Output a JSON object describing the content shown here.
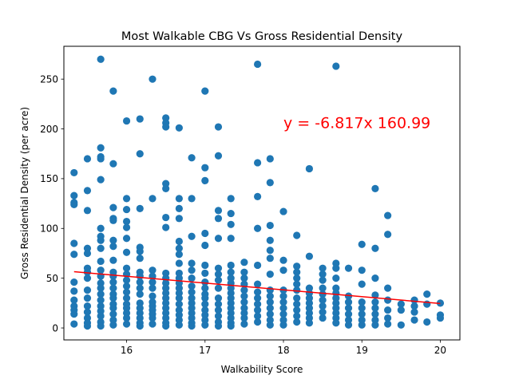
{
  "chart_data": {
    "type": "scatter",
    "title": "Most Walkable CBG Vs Gross Residential Density",
    "xlabel": "Walkability Score",
    "ylabel": "Gross Residential Density (per acre)",
    "xlim": [
      15.2,
      20.25
    ],
    "ylim": [
      -12,
      283
    ],
    "xticks": [
      16,
      17,
      18,
      19,
      20
    ],
    "yticks": [
      0,
      50,
      100,
      150,
      200,
      250
    ],
    "grid": false,
    "annotation": {
      "text": "y = -6.817x 160.99",
      "x": 18.0,
      "y": 201,
      "color": "#ff0000"
    },
    "regression": {
      "x": [
        15.33,
        20.0
      ],
      "y": [
        56.5,
        24.6
      ],
      "color": "#ff0000"
    },
    "point_color": "#1f77b4",
    "points": [
      [
        15.33,
        156
      ],
      [
        15.33,
        133
      ],
      [
        15.33,
        126
      ],
      [
        15.33,
        124
      ],
      [
        15.33,
        85
      ],
      [
        15.33,
        74
      ],
      [
        15.33,
        46
      ],
      [
        15.33,
        37
      ],
      [
        15.33,
        28
      ],
      [
        15.33,
        22
      ],
      [
        15.33,
        18
      ],
      [
        15.33,
        14
      ],
      [
        15.33,
        4
      ],
      [
        15.5,
        170
      ],
      [
        15.5,
        138
      ],
      [
        15.5,
        118
      ],
      [
        15.5,
        80
      ],
      [
        15.5,
        75
      ],
      [
        15.5,
        60
      ],
      [
        15.5,
        56
      ],
      [
        15.5,
        50
      ],
      [
        15.5,
        38
      ],
      [
        15.5,
        30
      ],
      [
        15.5,
        22
      ],
      [
        15.5,
        16
      ],
      [
        15.5,
        10
      ],
      [
        15.5,
        5
      ],
      [
        15.5,
        2
      ],
      [
        15.67,
        270
      ],
      [
        15.67,
        181
      ],
      [
        15.67,
        172
      ],
      [
        15.67,
        170
      ],
      [
        15.67,
        149
      ],
      [
        15.67,
        100
      ],
      [
        15.67,
        92
      ],
      [
        15.67,
        88
      ],
      [
        15.67,
        80
      ],
      [
        15.67,
        67
      ],
      [
        15.67,
        58
      ],
      [
        15.67,
        52
      ],
      [
        15.67,
        45
      ],
      [
        15.67,
        40
      ],
      [
        15.67,
        34
      ],
      [
        15.67,
        28
      ],
      [
        15.67,
        22
      ],
      [
        15.67,
        17
      ],
      [
        15.67,
        12
      ],
      [
        15.67,
        6
      ],
      [
        15.67,
        2
      ],
      [
        15.83,
        238
      ],
      [
        15.83,
        165
      ],
      [
        15.83,
        121
      ],
      [
        15.83,
        110
      ],
      [
        15.83,
        108
      ],
      [
        15.83,
        88
      ],
      [
        15.83,
        82
      ],
      [
        15.83,
        68
      ],
      [
        15.83,
        56
      ],
      [
        15.83,
        52
      ],
      [
        15.83,
        46
      ],
      [
        15.83,
        40
      ],
      [
        15.83,
        34
      ],
      [
        15.83,
        30
      ],
      [
        15.83,
        24
      ],
      [
        15.83,
        20
      ],
      [
        15.83,
        14
      ],
      [
        15.83,
        8
      ],
      [
        15.83,
        3
      ],
      [
        16.0,
        208
      ],
      [
        16.0,
        130
      ],
      [
        16.0,
        119
      ],
      [
        16.0,
        107
      ],
      [
        16.0,
        101
      ],
      [
        16.0,
        90
      ],
      [
        16.0,
        76
      ],
      [
        16.0,
        60
      ],
      [
        16.0,
        54
      ],
      [
        16.0,
        48
      ],
      [
        16.0,
        42
      ],
      [
        16.0,
        36
      ],
      [
        16.0,
        30
      ],
      [
        16.0,
        24
      ],
      [
        16.0,
        20
      ],
      [
        16.0,
        15
      ],
      [
        16.0,
        10
      ],
      [
        16.0,
        4
      ],
      [
        16.17,
        210
      ],
      [
        16.17,
        175
      ],
      [
        16.17,
        120
      ],
      [
        16.17,
        81
      ],
      [
        16.17,
        77
      ],
      [
        16.17,
        70
      ],
      [
        16.17,
        56
      ],
      [
        16.17,
        52
      ],
      [
        16.17,
        46
      ],
      [
        16.17,
        40
      ],
      [
        16.17,
        34
      ],
      [
        16.17,
        25
      ],
      [
        16.17,
        20
      ],
      [
        16.17,
        15
      ],
      [
        16.17,
        10
      ],
      [
        16.17,
        5
      ],
      [
        16.17,
        2
      ],
      [
        16.33,
        250
      ],
      [
        16.33,
        130
      ],
      [
        16.33,
        58
      ],
      [
        16.33,
        52
      ],
      [
        16.33,
        46
      ],
      [
        16.33,
        40
      ],
      [
        16.33,
        32
      ],
      [
        16.33,
        26
      ],
      [
        16.33,
        22
      ],
      [
        16.33,
        18
      ],
      [
        16.33,
        14
      ],
      [
        16.33,
        10
      ],
      [
        16.33,
        4
      ],
      [
        16.5,
        211
      ],
      [
        16.5,
        206
      ],
      [
        16.5,
        202
      ],
      [
        16.5,
        145
      ],
      [
        16.5,
        140
      ],
      [
        16.5,
        111
      ],
      [
        16.5,
        101
      ],
      [
        16.5,
        55
      ],
      [
        16.5,
        50
      ],
      [
        16.5,
        45
      ],
      [
        16.5,
        40
      ],
      [
        16.5,
        35
      ],
      [
        16.5,
        30
      ],
      [
        16.5,
        25
      ],
      [
        16.5,
        20
      ],
      [
        16.5,
        15
      ],
      [
        16.5,
        10
      ],
      [
        16.5,
        5
      ],
      [
        16.5,
        2
      ],
      [
        16.67,
        201
      ],
      [
        16.67,
        130
      ],
      [
        16.67,
        120
      ],
      [
        16.67,
        110
      ],
      [
        16.67,
        87
      ],
      [
        16.67,
        80
      ],
      [
        16.67,
        74
      ],
      [
        16.67,
        65
      ],
      [
        16.67,
        55
      ],
      [
        16.67,
        50
      ],
      [
        16.67,
        45
      ],
      [
        16.67,
        40
      ],
      [
        16.67,
        35
      ],
      [
        16.67,
        30
      ],
      [
        16.67,
        24
      ],
      [
        16.67,
        18
      ],
      [
        16.67,
        13
      ],
      [
        16.67,
        8
      ],
      [
        16.67,
        3
      ],
      [
        16.83,
        171
      ],
      [
        16.83,
        130
      ],
      [
        16.83,
        92
      ],
      [
        16.83,
        65
      ],
      [
        16.83,
        58
      ],
      [
        16.83,
        50
      ],
      [
        16.83,
        42
      ],
      [
        16.83,
        36
      ],
      [
        16.83,
        30
      ],
      [
        16.83,
        25
      ],
      [
        16.83,
        20
      ],
      [
        16.83,
        15
      ],
      [
        16.83,
        10
      ],
      [
        16.83,
        5
      ],
      [
        16.83,
        2
      ],
      [
        17.0,
        238
      ],
      [
        17.0,
        161
      ],
      [
        17.0,
        148
      ],
      [
        17.0,
        95
      ],
      [
        17.0,
        83
      ],
      [
        17.0,
        63
      ],
      [
        17.0,
        55
      ],
      [
        17.0,
        46
      ],
      [
        17.0,
        40
      ],
      [
        17.0,
        34
      ],
      [
        17.0,
        30
      ],
      [
        17.0,
        24
      ],
      [
        17.0,
        18
      ],
      [
        17.0,
        13
      ],
      [
        17.0,
        8
      ],
      [
        17.0,
        3
      ],
      [
        17.17,
        202
      ],
      [
        17.17,
        173
      ],
      [
        17.17,
        118
      ],
      [
        17.17,
        110
      ],
      [
        17.17,
        90
      ],
      [
        17.17,
        60
      ],
      [
        17.17,
        54
      ],
      [
        17.17,
        48
      ],
      [
        17.17,
        40
      ],
      [
        17.17,
        30
      ],
      [
        17.17,
        24
      ],
      [
        17.17,
        18
      ],
      [
        17.17,
        12
      ],
      [
        17.17,
        6
      ],
      [
        17.17,
        2
      ],
      [
        17.33,
        130
      ],
      [
        17.33,
        115
      ],
      [
        17.33,
        104
      ],
      [
        17.33,
        90
      ],
      [
        17.33,
        63
      ],
      [
        17.33,
        56
      ],
      [
        17.33,
        50
      ],
      [
        17.33,
        45
      ],
      [
        17.33,
        40
      ],
      [
        17.33,
        35
      ],
      [
        17.33,
        30
      ],
      [
        17.33,
        25
      ],
      [
        17.33,
        20
      ],
      [
        17.33,
        15
      ],
      [
        17.33,
        10
      ],
      [
        17.33,
        5
      ],
      [
        17.33,
        2
      ],
      [
        17.5,
        66
      ],
      [
        17.5,
        56
      ],
      [
        17.5,
        50
      ],
      [
        17.5,
        44
      ],
      [
        17.5,
        38
      ],
      [
        17.5,
        32
      ],
      [
        17.5,
        26
      ],
      [
        17.5,
        20
      ],
      [
        17.5,
        15
      ],
      [
        17.5,
        10
      ],
      [
        17.5,
        4
      ],
      [
        17.67,
        265
      ],
      [
        17.67,
        166
      ],
      [
        17.67,
        132
      ],
      [
        17.67,
        100
      ],
      [
        17.67,
        63
      ],
      [
        17.67,
        44
      ],
      [
        17.67,
        36
      ],
      [
        17.67,
        30
      ],
      [
        17.67,
        24
      ],
      [
        17.67,
        18
      ],
      [
        17.67,
        12
      ],
      [
        17.67,
        6
      ],
      [
        17.83,
        170
      ],
      [
        17.83,
        146
      ],
      [
        17.83,
        103
      ],
      [
        17.83,
        88
      ],
      [
        17.83,
        78
      ],
      [
        17.83,
        70
      ],
      [
        17.83,
        54
      ],
      [
        17.83,
        38
      ],
      [
        17.83,
        32
      ],
      [
        17.83,
        26
      ],
      [
        17.83,
        20
      ],
      [
        17.83,
        14
      ],
      [
        17.83,
        8
      ],
      [
        17.83,
        3
      ],
      [
        18.0,
        117
      ],
      [
        18.0,
        68
      ],
      [
        18.0,
        58
      ],
      [
        18.0,
        38
      ],
      [
        18.0,
        32
      ],
      [
        18.0,
        26
      ],
      [
        18.0,
        20
      ],
      [
        18.0,
        14
      ],
      [
        18.0,
        8
      ],
      [
        18.0,
        3
      ],
      [
        18.17,
        93
      ],
      [
        18.17,
        62
      ],
      [
        18.17,
        56
      ],
      [
        18.17,
        50
      ],
      [
        18.17,
        44
      ],
      [
        18.17,
        38
      ],
      [
        18.17,
        30
      ],
      [
        18.17,
        24
      ],
      [
        18.17,
        18
      ],
      [
        18.17,
        12
      ],
      [
        18.17,
        6
      ],
      [
        18.33,
        160
      ],
      [
        18.33,
        72
      ],
      [
        18.33,
        40
      ],
      [
        18.33,
        35
      ],
      [
        18.33,
        30
      ],
      [
        18.33,
        25
      ],
      [
        18.33,
        20
      ],
      [
        18.33,
        15
      ],
      [
        18.33,
        10
      ],
      [
        18.33,
        5
      ],
      [
        18.5,
        60
      ],
      [
        18.5,
        54
      ],
      [
        18.5,
        48
      ],
      [
        18.5,
        40
      ],
      [
        18.5,
        34
      ],
      [
        18.5,
        28
      ],
      [
        18.5,
        22
      ],
      [
        18.5,
        16
      ],
      [
        18.5,
        10
      ],
      [
        18.67,
        263
      ],
      [
        18.67,
        65
      ],
      [
        18.67,
        60
      ],
      [
        18.67,
        50
      ],
      [
        18.67,
        40
      ],
      [
        18.67,
        35
      ],
      [
        18.67,
        30
      ],
      [
        18.67,
        25
      ],
      [
        18.67,
        20
      ],
      [
        18.67,
        15
      ],
      [
        18.67,
        10
      ],
      [
        18.67,
        5
      ],
      [
        18.83,
        60
      ],
      [
        18.83,
        32
      ],
      [
        18.83,
        26
      ],
      [
        18.83,
        20
      ],
      [
        18.83,
        14
      ],
      [
        18.83,
        8
      ],
      [
        18.83,
        3
      ],
      [
        19.0,
        84
      ],
      [
        19.0,
        58
      ],
      [
        19.0,
        44
      ],
      [
        19.0,
        26
      ],
      [
        19.0,
        20
      ],
      [
        19.0,
        14
      ],
      [
        19.0,
        8
      ],
      [
        19.0,
        3
      ],
      [
        19.17,
        140
      ],
      [
        19.17,
        80
      ],
      [
        19.17,
        50
      ],
      [
        19.17,
        33
      ],
      [
        19.17,
        26
      ],
      [
        19.17,
        20
      ],
      [
        19.17,
        14
      ],
      [
        19.17,
        8
      ],
      [
        19.17,
        3
      ],
      [
        19.33,
        113
      ],
      [
        19.33,
        94
      ],
      [
        19.33,
        40
      ],
      [
        19.33,
        28
      ],
      [
        19.33,
        18
      ],
      [
        19.33,
        10
      ],
      [
        19.33,
        4
      ],
      [
        19.5,
        24
      ],
      [
        19.5,
        18
      ],
      [
        19.5,
        3
      ],
      [
        19.67,
        28
      ],
      [
        19.67,
        22
      ],
      [
        19.67,
        16
      ],
      [
        19.67,
        8
      ],
      [
        19.83,
        34
      ],
      [
        19.83,
        24
      ],
      [
        19.83,
        6
      ],
      [
        20.0,
        25
      ],
      [
        20.0,
        13
      ],
      [
        20.0,
        10
      ]
    ]
  }
}
